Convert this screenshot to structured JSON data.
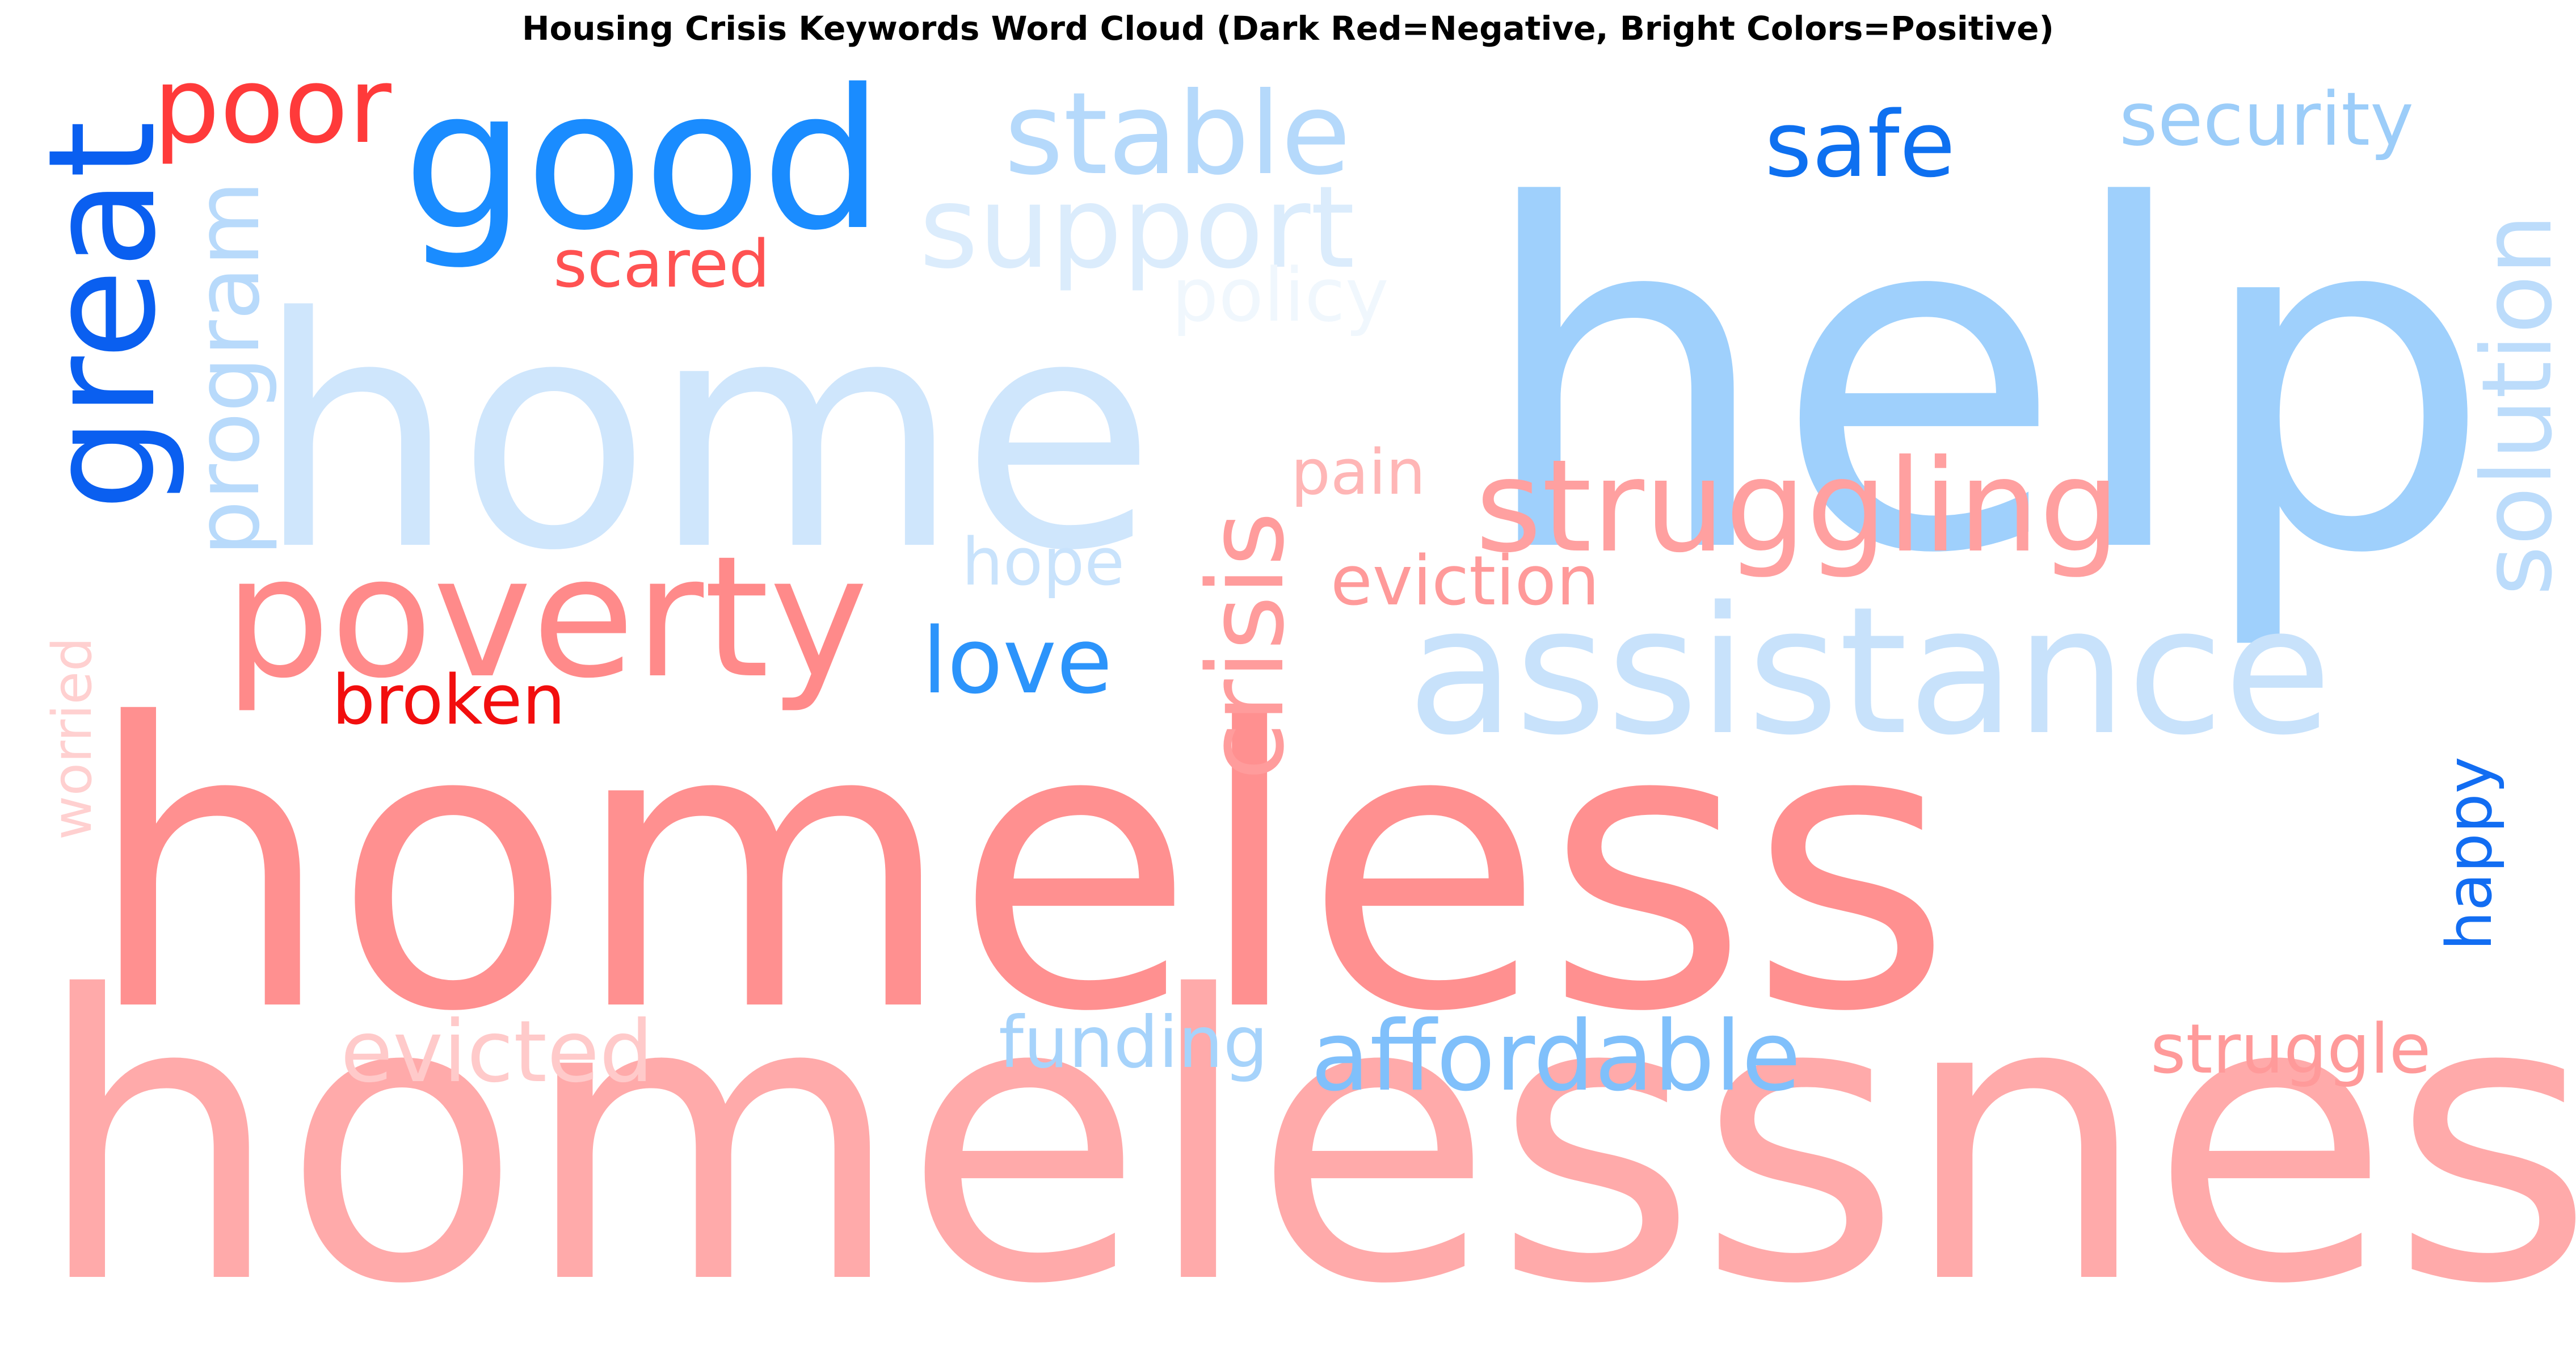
{
  "title": "Housing Crisis Keywords Word Cloud (Dark Red=Negative, Bright Colors=Positive)",
  "words": [
    {
      "text": "homelessness",
      "color": "#ffaaaa"
    },
    {
      "text": "homeless",
      "color": "#ff9090"
    },
    {
      "text": "home",
      "color": "#cfe6fc"
    },
    {
      "text": "help",
      "color": "#9fd0fc"
    },
    {
      "text": "assistance",
      "color": "#c8e2fb"
    },
    {
      "text": "poverty",
      "color": "#ff8a8a"
    },
    {
      "text": "good",
      "color": "#1a8cff"
    },
    {
      "text": "struggling",
      "color": "#ffa0a0"
    },
    {
      "text": "stable",
      "color": "#b5d9fb"
    },
    {
      "text": "support",
      "color": "#dbecfc"
    },
    {
      "text": "affordable",
      "color": "#80c0fb"
    },
    {
      "text": "great",
      "color": "#0a5ff0"
    },
    {
      "text": "crisis",
      "color": "#ff9c9c"
    },
    {
      "text": "solution",
      "color": "#bcdcfb"
    },
    {
      "text": "program",
      "color": "#b8dafb"
    },
    {
      "text": "poor",
      "color": "#ff3a3a"
    },
    {
      "text": "evicted",
      "color": "#ffcaca"
    },
    {
      "text": "safe",
      "color": "#0e70f0"
    },
    {
      "text": "security",
      "color": "#9ccdf9"
    },
    {
      "text": "love",
      "color": "#2c94fb"
    },
    {
      "text": "struggle",
      "color": "#ff9a9a"
    },
    {
      "text": "funding",
      "color": "#a6d3fb"
    },
    {
      "text": "eviction",
      "color": "#ff9a9a"
    },
    {
      "text": "broken",
      "color": "#f20e0e"
    },
    {
      "text": "scared",
      "color": "#ff5252"
    },
    {
      "text": "happy",
      "color": "#126df2"
    },
    {
      "text": "hope",
      "color": "#c9e3fc"
    },
    {
      "text": "pain",
      "color": "#ffb6b6"
    },
    {
      "text": "policy",
      "color": "#f0f7fd"
    },
    {
      "text": "worried",
      "color": "#ffd0d0"
    }
  ]
}
